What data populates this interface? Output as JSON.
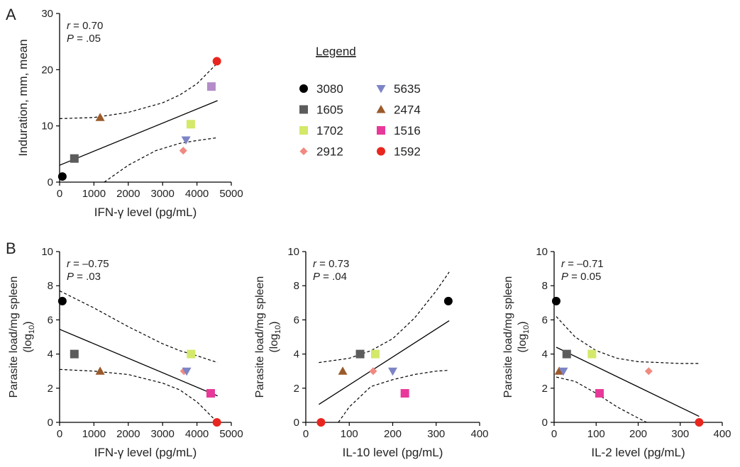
{
  "colors": {
    "3080": "#000000",
    "1605": "#5c5c5c",
    "1702": "#d4e86a",
    "2912": "#f08a80",
    "5635": "#7d84c6",
    "2474": "#9b5a2a",
    "1516": "#e8399a",
    "1592": "#e8261f",
    "1516_panelA": "#b48cc8"
  },
  "panel_labels": {
    "a": "A",
    "b": "B"
  },
  "legend": {
    "title": "Legend",
    "items": [
      {
        "id": "3080",
        "label": "3080",
        "marker": "circle"
      },
      {
        "id": "5635",
        "label": "5635",
        "marker": "triangle-down"
      },
      {
        "id": "1605",
        "label": "1605",
        "marker": "square"
      },
      {
        "id": "2474",
        "label": "2474",
        "marker": "triangle-up"
      },
      {
        "id": "1702",
        "label": "1702",
        "marker": "square"
      },
      {
        "id": "1516",
        "label": "1516",
        "marker": "square"
      },
      {
        "id": "2912",
        "label": "2912",
        "marker": "diamond"
      },
      {
        "id": "1592",
        "label": "1592",
        "marker": "circle"
      }
    ]
  },
  "chart_data": [
    {
      "id": "A",
      "type": "scatter",
      "xlabel": "IFN-γ level (pg/mL)",
      "ylabel": "Induration, mm, mean",
      "xlim": [
        0,
        5000
      ],
      "ylim": [
        0,
        30
      ],
      "xticks": [
        0,
        1000,
        2000,
        3000,
        4000,
        5000
      ],
      "yticks": [
        0,
        10,
        20,
        30
      ],
      "annotation": {
        "r": "= 0.70",
        "p": "= .05"
      },
      "points": [
        {
          "id": "3080",
          "x": 80,
          "y": 1.0,
          "marker": "circle"
        },
        {
          "id": "1605",
          "x": 430,
          "y": 4.2,
          "marker": "square"
        },
        {
          "id": "2474",
          "x": 1180,
          "y": 11.5,
          "marker": "triangle-up"
        },
        {
          "id": "2912",
          "x": 3600,
          "y": 5.6,
          "marker": "diamond"
        },
        {
          "id": "5635",
          "x": 3680,
          "y": 7.5,
          "marker": "triangle-down"
        },
        {
          "id": "1702",
          "x": 3820,
          "y": 10.3,
          "marker": "square"
        },
        {
          "id": "1516",
          "x": 4420,
          "y": 17.0,
          "marker": "square",
          "color_key": "1516_panelA"
        },
        {
          "id": "1592",
          "x": 4580,
          "y": 21.5,
          "marker": "circle"
        }
      ],
      "fit": {
        "x": [
          0,
          4600
        ],
        "y": [
          3.0,
          14.5
        ]
      },
      "ci_upper": {
        "x": [
          0,
          1000,
          2000,
          3000,
          3500,
          4000,
          4600
        ],
        "y": [
          11.3,
          11.5,
          12.4,
          14.1,
          15.5,
          17.5,
          21.2
        ]
      },
      "ci_lower": {
        "x": [
          1300,
          2000,
          2800,
          3500,
          4000,
          4600
        ],
        "y": [
          0,
          3.0,
          5.6,
          6.9,
          7.4,
          7.9
        ]
      }
    },
    {
      "id": "B1",
      "type": "scatter",
      "xlabel": "IFN-γ level (pg/mL)",
      "ylabel_line1": "Parasite load/mg spleen",
      "ylabel_line2": "(log",
      "ylabel_sub": "10",
      "ylabel_close": ")",
      "xlim": [
        0,
        5000
      ],
      "ylim": [
        0,
        10
      ],
      "xticks": [
        0,
        1000,
        2000,
        3000,
        4000,
        5000
      ],
      "yticks": [
        0,
        2,
        4,
        6,
        8,
        10
      ],
      "annotation": {
        "r": "= –0.75",
        "p": "= .03"
      },
      "points": [
        {
          "id": "3080",
          "x": 80,
          "y": 7.1,
          "marker": "circle"
        },
        {
          "id": "1605",
          "x": 430,
          "y": 4.0,
          "marker": "square"
        },
        {
          "id": "2474",
          "x": 1180,
          "y": 3.0,
          "marker": "triangle-up"
        },
        {
          "id": "2912",
          "x": 3620,
          "y": 3.0,
          "marker": "diamond"
        },
        {
          "id": "5635",
          "x": 3700,
          "y": 3.0,
          "marker": "triangle-down"
        },
        {
          "id": "1702",
          "x": 3830,
          "y": 4.0,
          "marker": "square"
        },
        {
          "id": "1516",
          "x": 4400,
          "y": 1.7,
          "marker": "square"
        },
        {
          "id": "1592",
          "x": 4580,
          "y": 0.0,
          "marker": "circle"
        }
      ],
      "fit": {
        "x": [
          0,
          4600
        ],
        "y": [
          5.45,
          1.55
        ]
      },
      "ci_upper": {
        "x": [
          0,
          1000,
          2000,
          3000,
          3500,
          4000,
          4600
        ],
        "y": [
          7.7,
          6.7,
          5.6,
          4.6,
          4.2,
          3.9,
          3.5
        ]
      },
      "ci_lower": {
        "x": [
          0,
          1000,
          2000,
          3000,
          3500,
          4000,
          4300,
          4600
        ],
        "y": [
          3.1,
          3.0,
          2.8,
          2.3,
          1.9,
          1.2,
          0.6,
          0.0
        ]
      }
    },
    {
      "id": "B2",
      "type": "scatter",
      "xlabel": "IL-10 level (pg/mL)",
      "ylabel_line1": "Parasite load/mg spleen",
      "ylabel_line2": "(log",
      "ylabel_sub": "10",
      "ylabel_close": ")",
      "xlim": [
        0,
        400
      ],
      "ylim": [
        0,
        10
      ],
      "xticks": [
        0,
        100,
        200,
        300,
        400
      ],
      "yticks": [
        0,
        2,
        4,
        6,
        8,
        10
      ],
      "annotation": {
        "r": "= 0.73",
        "p": "= .04"
      },
      "points": [
        {
          "id": "1592",
          "x": 35,
          "y": 0.0,
          "marker": "circle"
        },
        {
          "id": "2474",
          "x": 85,
          "y": 3.0,
          "marker": "triangle-up"
        },
        {
          "id": "1605",
          "x": 125,
          "y": 4.0,
          "marker": "square"
        },
        {
          "id": "2912",
          "x": 155,
          "y": 3.0,
          "marker": "diamond"
        },
        {
          "id": "1702",
          "x": 160,
          "y": 4.0,
          "marker": "square"
        },
        {
          "id": "5635",
          "x": 200,
          "y": 3.0,
          "marker": "triangle-down"
        },
        {
          "id": "1516",
          "x": 228,
          "y": 1.7,
          "marker": "square"
        },
        {
          "id": "3080",
          "x": 328,
          "y": 7.1,
          "marker": "circle"
        }
      ],
      "fit": {
        "x": [
          30,
          330
        ],
        "y": [
          1.05,
          5.95
        ]
      },
      "ci_upper": {
        "x": [
          30,
          100,
          150,
          200,
          250,
          300,
          330
        ],
        "y": [
          3.5,
          3.75,
          4.2,
          4.9,
          6.1,
          7.7,
          8.8
        ]
      },
      "ci_lower": {
        "x": [
          75,
          100,
          150,
          200,
          250,
          300,
          330
        ],
        "y": [
          0.0,
          0.9,
          2.1,
          2.5,
          2.8,
          3.0,
          3.05
        ]
      }
    },
    {
      "id": "B3",
      "type": "scatter",
      "xlabel": "IL-2 level (pg/mL)",
      "ylabel_line1": "Parasite load/mg spleen",
      "ylabel_line2": "(log",
      "ylabel_sub": "10",
      "ylabel_close": ")",
      "xlim": [
        0,
        400
      ],
      "ylim": [
        0,
        10
      ],
      "xticks": [
        0,
        100,
        200,
        300,
        400
      ],
      "yticks": [
        0,
        2,
        4,
        6,
        8,
        10
      ],
      "annotation": {
        "r": "= –0.71",
        "p": "= 0.05"
      },
      "points": [
        {
          "id": "3080",
          "x": 5,
          "y": 7.1,
          "marker": "circle"
        },
        {
          "id": "2474",
          "x": 12,
          "y": 3.0,
          "marker": "triangle-up"
        },
        {
          "id": "5635",
          "x": 22,
          "y": 3.0,
          "marker": "triangle-down"
        },
        {
          "id": "1605",
          "x": 30,
          "y": 4.0,
          "marker": "square"
        },
        {
          "id": "1702",
          "x": 90,
          "y": 4.0,
          "marker": "square"
        },
        {
          "id": "1516",
          "x": 108,
          "y": 1.7,
          "marker": "square"
        },
        {
          "id": "2912",
          "x": 225,
          "y": 3.0,
          "marker": "diamond"
        },
        {
          "id": "1592",
          "x": 345,
          "y": 0.0,
          "marker": "circle"
        }
      ],
      "fit": {
        "x": [
          5,
          345
        ],
        "y": [
          4.4,
          0.35
        ]
      },
      "ci_upper": {
        "x": [
          5,
          50,
          100,
          150,
          200,
          250,
          300,
          345
        ],
        "y": [
          6.2,
          5.0,
          4.2,
          3.75,
          3.55,
          3.5,
          3.45,
          3.45
        ]
      },
      "ci_lower": {
        "x": [
          5,
          50,
          100,
          150,
          200,
          220
        ],
        "y": [
          2.65,
          2.4,
          1.7,
          0.9,
          0.25,
          0.0
        ]
      }
    }
  ]
}
